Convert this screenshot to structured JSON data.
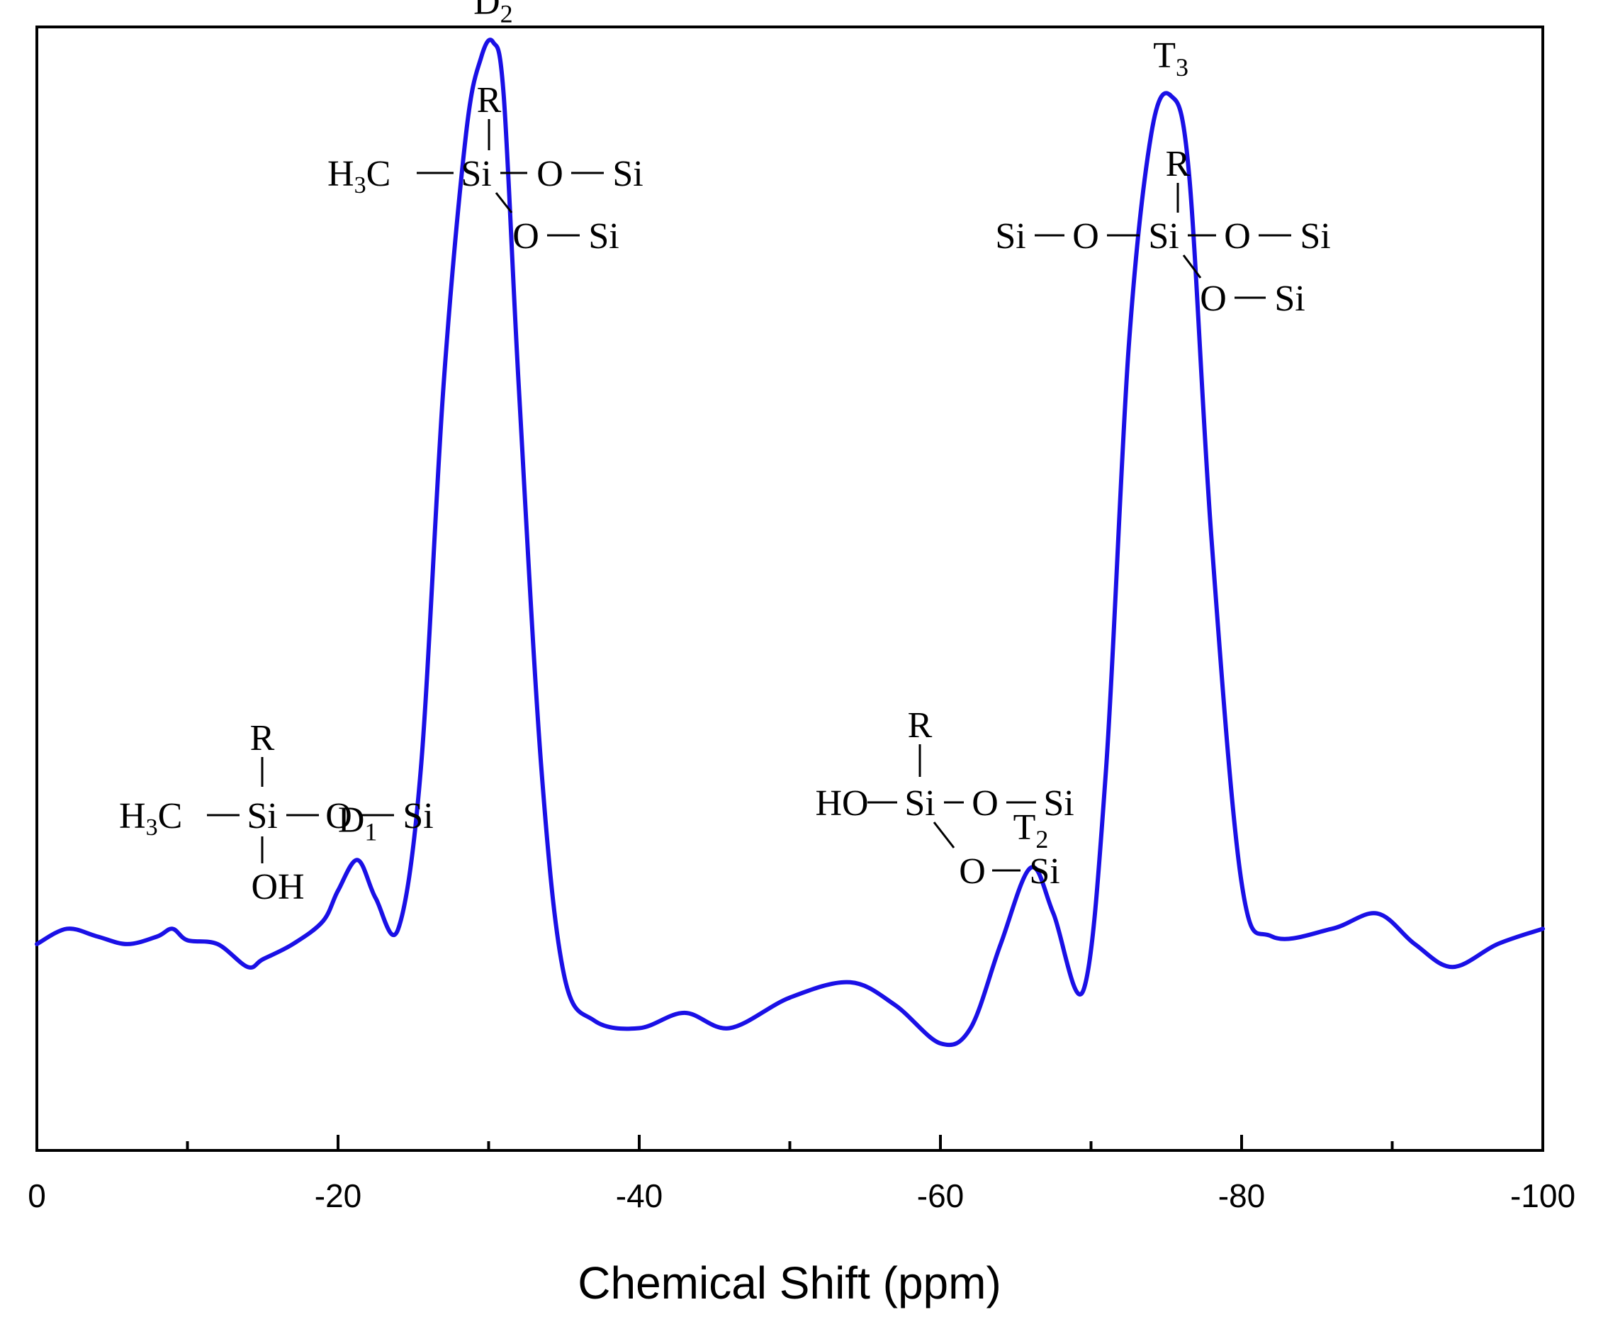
{
  "chart_data": {
    "type": "line",
    "title": "",
    "xlabel": "Chemical Shift (ppm)",
    "ylabel": "",
    "xlim": [
      0,
      -100
    ],
    "ylim": [
      -0.25,
      1.22
    ],
    "x_ticks": [
      0,
      -20,
      -40,
      -60,
      -80,
      -100
    ],
    "x_tick_labels": [
      "0",
      "-20",
      "-40",
      "-60",
      "-80",
      "-100"
    ],
    "minor_ticks": [
      -10,
      -30,
      -50,
      -70,
      -90
    ],
    "grid": false,
    "legend": "none",
    "series": [
      {
        "color": "#1a10e6",
        "x": [
          0,
          -2,
          -4,
          -6,
          -8,
          -9,
          -10,
          -12,
          -14,
          -15,
          -17,
          -19,
          -20,
          -21.3,
          -22.5,
          -24,
          -25.5,
          -27,
          -28.5,
          -29.5,
          -30.3,
          -31,
          -32,
          -33.5,
          -35,
          -37,
          -40,
          -43,
          -46,
          -50,
          -54,
          -57,
          -60,
          -62,
          -64,
          -66,
          -67.5,
          -69.5,
          -71,
          -72.5,
          -74,
          -75.3,
          -76.5,
          -78,
          -80,
          -82,
          -86,
          -89,
          -91.5,
          -94,
          -97,
          -100
        ],
        "y": [
          0.02,
          0.04,
          0.03,
          0.02,
          0.03,
          0.04,
          0.025,
          0.02,
          -0.01,
          0.0,
          0.02,
          0.05,
          0.09,
          0.13,
          0.08,
          0.04,
          0.25,
          0.75,
          1.08,
          1.18,
          1.2,
          1.13,
          0.75,
          0.25,
          -0.02,
          -0.08,
          -0.09,
          -0.07,
          -0.09,
          -0.05,
          -0.03,
          -0.06,
          -0.11,
          -0.09,
          0.02,
          0.12,
          0.06,
          -0.04,
          0.25,
          0.8,
          1.08,
          1.13,
          1.03,
          0.55,
          0.1,
          0.03,
          0.04,
          0.06,
          0.02,
          -0.01,
          0.02,
          0.04
        ]
      }
    ],
    "peak_labels": [
      {
        "letter": "D",
        "sub": "1",
        "x": -21.3,
        "y": 0.13
      },
      {
        "letter": "D",
        "sub": "2",
        "x": -30.3,
        "y": 1.2
      },
      {
        "letter": "T",
        "sub": "2",
        "x": -66,
        "y": 0.12
      },
      {
        "letter": "T",
        "sub": "3",
        "x": -75.3,
        "y": 1.13
      }
    ]
  },
  "structures": {
    "d1": {
      "r": "R",
      "h3c": "H",
      "h3c_sub": "3",
      "c": "C",
      "si": "Si",
      "o": "O",
      "si2": "Si",
      "oh": "OH"
    },
    "d2": {
      "r": "R",
      "h3c": "H",
      "h3c_sub": "3",
      "c": "C",
      "si": "Si",
      "o1": "O",
      "si1": "Si",
      "o2": "O",
      "si2": "Si"
    },
    "t2": {
      "r": "R",
      "ho": "HO",
      "si": "Si",
      "o1": "O",
      "si1": "Si",
      "o2": "O",
      "si2": "Si"
    },
    "t3": {
      "r": "R",
      "si_left": "Si",
      "o_left": "O",
      "si": "Si",
      "o1": "O",
      "si1": "Si",
      "o2": "O",
      "si2": "Si"
    }
  }
}
